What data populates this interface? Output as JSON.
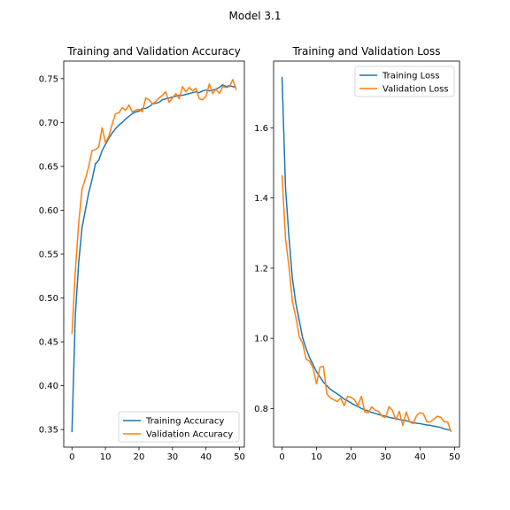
{
  "figure": {
    "suptitle": "Model 3.1"
  },
  "colors": {
    "training": "#1f77b4",
    "validation": "#ff7f0e"
  },
  "chart_data": [
    {
      "type": "line",
      "title": "Training and Validation Accuracy",
      "xlabel": "",
      "ylabel": "",
      "xlim": [
        -2.45,
        51.45
      ],
      "ylim": [
        0.33,
        0.77
      ],
      "xticks": [
        0,
        10,
        20,
        30,
        40,
        50
      ],
      "xtick_labels": [
        "0",
        "10",
        "20",
        "30",
        "40",
        "50"
      ],
      "yticks": [
        0.35,
        0.4,
        0.45,
        0.5,
        0.55,
        0.6,
        0.65,
        0.7,
        0.75
      ],
      "ytick_labels": [
        "0.35",
        "0.40",
        "0.45",
        "0.50",
        "0.55",
        "0.60",
        "0.65",
        "0.70",
        "0.75"
      ],
      "legend": "lower-right",
      "grid": false,
      "x": [
        0,
        1,
        2,
        3,
        4,
        5,
        6,
        7,
        8,
        9,
        10,
        11,
        12,
        13,
        14,
        15,
        16,
        17,
        18,
        19,
        20,
        21,
        22,
        23,
        24,
        25,
        26,
        27,
        28,
        29,
        30,
        31,
        32,
        33,
        34,
        35,
        36,
        37,
        38,
        39,
        40,
        41,
        42,
        43,
        44,
        45,
        46,
        47,
        48,
        49
      ],
      "series": [
        {
          "name": "Training Accuracy",
          "values": [
            0.347,
            0.48,
            0.54,
            0.58,
            0.6,
            0.62,
            0.635,
            0.653,
            0.657,
            0.668,
            0.675,
            0.682,
            0.688,
            0.693,
            0.697,
            0.7,
            0.704,
            0.707,
            0.71,
            0.712,
            0.713,
            0.716,
            0.716,
            0.718,
            0.721,
            0.722,
            0.723,
            0.726,
            0.727,
            0.728,
            0.729,
            0.73,
            0.731,
            0.731,
            0.732,
            0.733,
            0.734,
            0.735,
            0.734,
            0.736,
            0.737,
            0.736,
            0.737,
            0.738,
            0.74,
            0.743,
            0.741,
            0.742,
            0.741,
            0.74
          ]
        },
        {
          "name": "Validation Accuracy",
          "values": [
            0.459,
            0.53,
            0.585,
            0.624,
            0.636,
            0.65,
            0.668,
            0.669,
            0.672,
            0.694,
            0.677,
            0.684,
            0.698,
            0.71,
            0.711,
            0.717,
            0.714,
            0.72,
            0.712,
            0.714,
            0.715,
            0.712,
            0.728,
            0.726,
            0.721,
            0.724,
            0.728,
            0.731,
            0.735,
            0.723,
            0.728,
            0.733,
            0.727,
            0.741,
            0.735,
            0.74,
            0.736,
            0.739,
            0.727,
            0.726,
            0.73,
            0.744,
            0.733,
            0.738,
            0.733,
            0.741,
            0.74,
            0.741,
            0.749,
            0.737
          ]
        }
      ]
    },
    {
      "type": "line",
      "title": "Training and Validation Loss",
      "xlabel": "",
      "ylabel": "",
      "xlim": [
        -2.45,
        51.45
      ],
      "ylim": [
        0.69,
        1.79
      ],
      "xticks": [
        0,
        10,
        20,
        30,
        40,
        50
      ],
      "xtick_labels": [
        "0",
        "10",
        "20",
        "30",
        "40",
        "50"
      ],
      "yticks": [
        0.8,
        1.0,
        1.2,
        1.4,
        1.6
      ],
      "ytick_labels": [
        "0.8",
        "1.0",
        "1.2",
        "1.4",
        "1.6"
      ],
      "legend": "top-right",
      "grid": false,
      "x": [
        0,
        1,
        2,
        3,
        4,
        5,
        6,
        7,
        8,
        9,
        10,
        11,
        12,
        13,
        14,
        15,
        16,
        17,
        18,
        19,
        20,
        21,
        22,
        23,
        24,
        25,
        26,
        27,
        28,
        29,
        30,
        31,
        32,
        33,
        34,
        35,
        36,
        37,
        38,
        39,
        40,
        41,
        42,
        43,
        44,
        45,
        46,
        47,
        48,
        49
      ],
      "series": [
        {
          "name": "Training Loss",
          "values": [
            1.745,
            1.43,
            1.29,
            1.17,
            1.1,
            1.05,
            1.0,
            0.97,
            0.945,
            0.925,
            0.905,
            0.89,
            0.875,
            0.865,
            0.855,
            0.848,
            0.842,
            0.835,
            0.827,
            0.822,
            0.816,
            0.81,
            0.806,
            0.8,
            0.796,
            0.793,
            0.789,
            0.786,
            0.783,
            0.78,
            0.778,
            0.775,
            0.773,
            0.771,
            0.769,
            0.767,
            0.765,
            0.763,
            0.76,
            0.758,
            0.757,
            0.755,
            0.753,
            0.752,
            0.75,
            0.748,
            0.746,
            0.742,
            0.74,
            0.738
          ]
        },
        {
          "name": "Validation Loss",
          "values": [
            1.465,
            1.285,
            1.205,
            1.105,
            1.06,
            1.005,
            0.985,
            0.94,
            0.935,
            0.915,
            0.87,
            0.918,
            0.92,
            0.842,
            0.83,
            0.825,
            0.82,
            0.83,
            0.808,
            0.835,
            0.832,
            0.825,
            0.808,
            0.835,
            0.79,
            0.788,
            0.805,
            0.795,
            0.792,
            0.778,
            0.775,
            0.805,
            0.795,
            0.768,
            0.792,
            0.752,
            0.79,
            0.762,
            0.757,
            0.78,
            0.788,
            0.785,
            0.762,
            0.762,
            0.77,
            0.778,
            0.775,
            0.762,
            0.762,
            0.733
          ]
        }
      ]
    }
  ]
}
